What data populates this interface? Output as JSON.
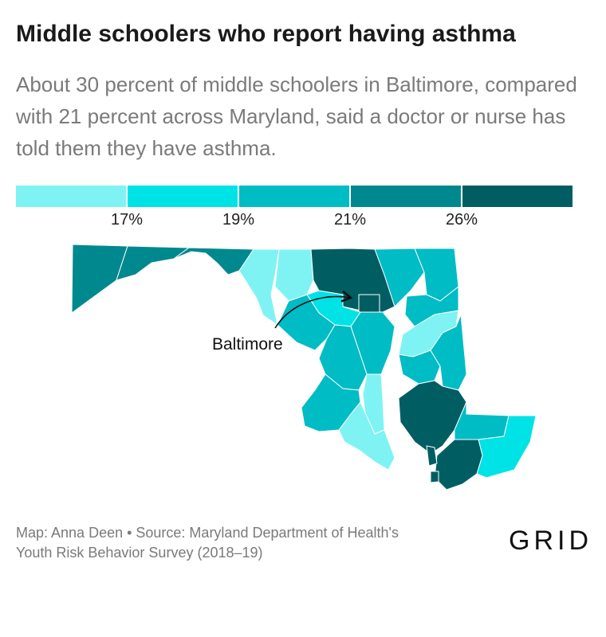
{
  "header": {
    "title": "Middle schoolers who report having asthma",
    "subtitle": "About 30 percent of middle schoolers in Baltimore, compared with 21 percent across Maryland, said a doctor or nurse has told them they have asthma."
  },
  "legend": {
    "ticks": [
      "17%",
      "19%",
      "21%",
      "26%"
    ],
    "colors": [
      "#7ff3f3",
      "#00e3e6",
      "#00bcc4",
      "#00888f",
      "#005e63"
    ]
  },
  "map": {
    "annotation": "Baltimore",
    "outline_color": "#ffffff"
  },
  "footer": {
    "source_line1": "Map: Anna Deen • Source: Maryland Department of Health's",
    "source_line2": "Youth Risk Behavior Survey (2018–19)",
    "logo": "GRID"
  }
}
